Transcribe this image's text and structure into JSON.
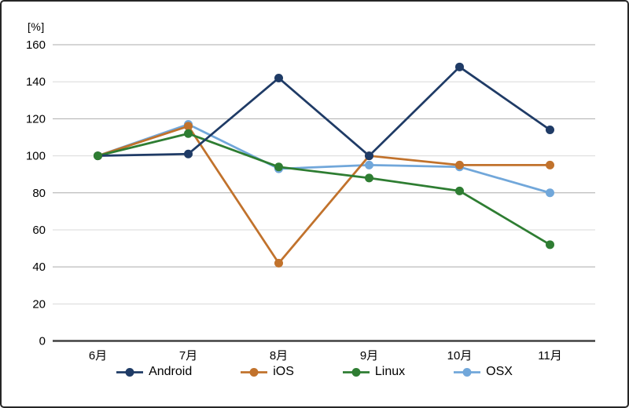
{
  "chart_data": {
    "type": "line",
    "title": "",
    "unit_label": "[%]",
    "xlabel": "",
    "ylabel": "%",
    "categories": [
      "6月",
      "7月",
      "8月",
      "9月",
      "10月",
      "11月"
    ],
    "yticks": [
      0,
      20,
      40,
      60,
      80,
      100,
      120,
      140,
      160
    ],
    "ylim": [
      0,
      160
    ],
    "grid": "horizontal",
    "legend_position": "bottom",
    "marker": "circle",
    "series": [
      {
        "name": "Android",
        "color": "#1F3B66",
        "values": [
          100,
          101,
          142,
          100,
          148,
          114
        ]
      },
      {
        "name": "iOS",
        "color": "#C1722C",
        "values": [
          100,
          116,
          42,
          100,
          95,
          95
        ]
      },
      {
        "name": "Linux",
        "color": "#2E7D32",
        "values": [
          100,
          112,
          94,
          88,
          81,
          52
        ]
      },
      {
        "name": "OSX",
        "color": "#71A7DA",
        "values": [
          100,
          117,
          93,
          95,
          94,
          80
        ]
      }
    ]
  },
  "colors": {
    "grid_major": "#ABABAB",
    "grid_minor": "#D9D9D9",
    "axis": "#404040",
    "border": "#262626",
    "text": "#000000"
  }
}
